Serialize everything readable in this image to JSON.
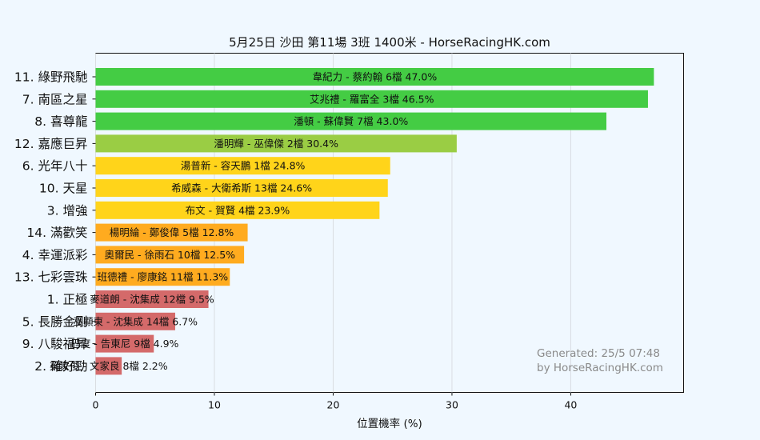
{
  "chart_data": {
    "type": "bar",
    "orientation": "horizontal",
    "title": "5月25日  沙田  第11場  3班  1400米 - HorseRacingHK.com",
    "xlabel": "位置機率 (%)",
    "ylabel": "",
    "xlim": [
      0,
      49.5
    ],
    "xticks": [
      "0",
      "10",
      "20",
      "30",
      "40"
    ],
    "grid": "vertical",
    "categories": [
      "11. 綠野飛馳",
      "7. 南區之星",
      "8. 喜尊龍",
      "12. 嘉應巨昇",
      "6. 光年八十",
      "10. 天星",
      "3. 增強",
      "14. 滿歡笑",
      "4. 幸運派彩",
      "13. 七彩雲珠",
      "1. 正極",
      "5. 長勝金剛",
      "9. 八駿福昇",
      "2. 確好勁"
    ],
    "values": [
      47.0,
      46.5,
      43.0,
      30.4,
      24.8,
      24.6,
      23.9,
      12.8,
      12.5,
      11.3,
      9.5,
      6.7,
      4.9,
      2.2
    ],
    "bar_labels": [
      "韋紀力 - 蔡約翰 6檔  47.0%",
      "艾兆禮 - 羅富全 3檔  46.5%",
      "潘頓 - 蘇偉賢 7檔  43.0%",
      "潘明輝 - 巫偉傑 2檔  30.4%",
      "湯普新 - 容天鵬 1檔  24.8%",
      "希威森 - 大衛希斯 13檔  24.6%",
      "布文 - 賀賢 4檔  23.9%",
      "楊明綸 - 鄭俊偉 5檔  12.8%",
      "奧爾民 - 徐雨石 10檔  12.5%",
      "班德禮 - 廖康銘 11檔  11.3%",
      "麥道朗 - 沈集成 12檔  9.5%",
      "巫顯東 - 沈集成 14檔  6.7%",
      "巴度 - 告東尼 9檔  4.9%",
      "梁家俊 - 文家良 8檔  2.2%"
    ],
    "colors": [
      "#44cc44",
      "#44cc44",
      "#44cc44",
      "#9acd44",
      "#ffd41a",
      "#ffd41a",
      "#ffd41a",
      "#ffab1f",
      "#ffab1f",
      "#ffab1f",
      "#d46a6a",
      "#d46a6a",
      "#d46a6a",
      "#d46a6a"
    ],
    "watermark": [
      "Generated: 25/5 07:48",
      "by HorseRacingHK.com"
    ]
  }
}
